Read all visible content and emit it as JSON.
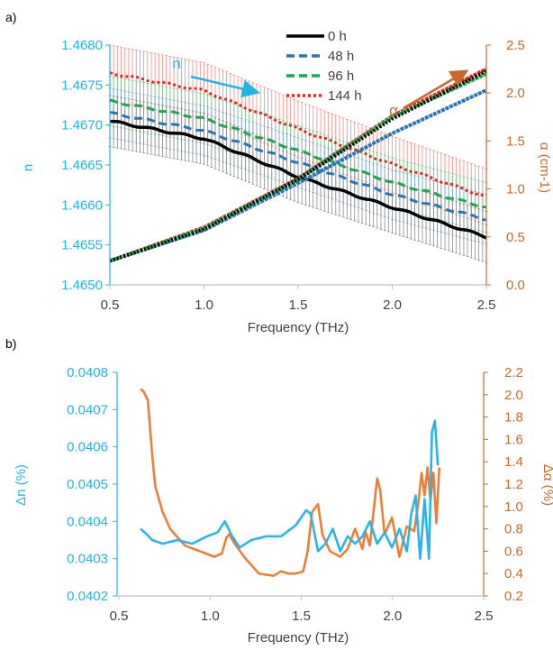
{
  "panel_labels": {
    "a": "a)",
    "b": "b)"
  },
  "colors": {
    "n_axis": "#1fb4e6",
    "alpha_axis": "#c8692a",
    "s0": "#000000",
    "s48": "#2a74b8",
    "s96": "#1aa84a",
    "s144": "#e2261c",
    "err0": "#8c8c8c",
    "err48": "#7aaad6",
    "err96": "#73c58c",
    "err144": "#f08a84",
    "dn": "#29b5e8",
    "dalpha": "#ec7f36"
  },
  "chart_data": [
    {
      "type": "line",
      "panel": "a)",
      "xlabel": "Frequency (THz)",
      "ylabel_left": "n",
      "ylabel_right": "α (cm-1)",
      "xlim": [
        0.5,
        2.5
      ],
      "ylim_left": [
        1.465,
        1.468
      ],
      "ylim_right": [
        0.0,
        2.5
      ],
      "x_ticks": [
        "0.5",
        "1.0",
        "1.5",
        "2.0",
        "2.5"
      ],
      "y_ticks_left": [
        "1.4650",
        "1.4655",
        "1.4660",
        "1.4665",
        "1.4670",
        "1.4675",
        "1.4680"
      ],
      "y_ticks_right": [
        "0.0",
        "0.5",
        "1.0",
        "1.5",
        "2.0",
        "2.5"
      ],
      "legend": [
        "0 h",
        "48 h",
        "96 h",
        "144 h"
      ],
      "annotations": {
        "n_arrow_label": "n",
        "alpha_arrow_label": "α"
      },
      "x": [
        0.5,
        1.0,
        1.5,
        2.0,
        2.5
      ],
      "n_series": [
        {
          "name": "0 h",
          "values": [
            1.46705,
            1.46683,
            1.46635,
            1.46597,
            1.4656
          ],
          "err": 0.00032
        },
        {
          "name": "48 h",
          "values": [
            1.46715,
            1.46693,
            1.46653,
            1.46613,
            1.46582
          ],
          "err": 0.00031
        },
        {
          "name": "96 h",
          "values": [
            1.4673,
            1.46708,
            1.46668,
            1.46628,
            1.46597
          ],
          "err": 0.00031
        },
        {
          "name": "144 h",
          "values": [
            1.46765,
            1.46743,
            1.46695,
            1.46651,
            1.4661
          ],
          "err": 0.00035
        }
      ],
      "alpha_series": [
        {
          "name": "0 h",
          "values": [
            0.25,
            0.58,
            1.1,
            1.73,
            2.23
          ]
        },
        {
          "name": "48 h",
          "values": [
            0.25,
            0.57,
            1.06,
            1.58,
            2.03
          ]
        },
        {
          "name": "96 h",
          "values": [
            0.25,
            0.59,
            1.1,
            1.75,
            2.2
          ]
        },
        {
          "name": "144 h",
          "values": [
            0.25,
            0.6,
            1.11,
            1.76,
            2.25
          ]
        }
      ]
    },
    {
      "type": "line",
      "panel": "b)",
      "xlabel": "Frequency (THz)",
      "ylabel_left": "Δn (%)",
      "ylabel_right": "Δα (%)",
      "xlim": [
        0.5,
        2.5
      ],
      "ylim_left": [
        0.0402,
        0.0408
      ],
      "ylim_right": [
        0.2,
        2.2
      ],
      "x_ticks": [
        "0.5",
        "1.0",
        "1.5",
        "2.0",
        "2.5"
      ],
      "y_ticks_left": [
        "0.0402",
        "0.0403",
        "0.0404",
        "0.0405",
        "0.0406",
        "0.0407",
        "0.0408"
      ],
      "y_ticks_right": [
        "0.2",
        "0.4",
        "0.6",
        "0.8",
        "1.0",
        "1.2",
        "1.4",
        "1.6",
        "1.8",
        "2.0",
        "2.2"
      ],
      "series": [
        {
          "name": "Δn",
          "x": [
            0.5,
            0.53,
            0.58,
            0.65,
            0.75,
            0.85,
            0.95,
            1.02,
            1.07,
            1.12,
            1.17,
            1.25,
            1.35,
            1.45,
            1.55,
            1.62,
            1.65,
            1.7,
            1.75,
            1.8,
            1.85,
            1.9,
            1.95,
            2.0,
            2.05,
            2.1,
            2.15,
            2.2,
            2.25,
            2.3,
            2.33,
            2.36,
            2.39,
            2.42,
            2.45,
            2.47,
            2.49,
            2.51
          ],
          "values": [
            0.04038,
            0.04037,
            0.04035,
            0.04034,
            0.04035,
            0.04034,
            0.04036,
            0.04037,
            0.0404,
            0.04036,
            0.04033,
            0.04035,
            0.04036,
            0.04036,
            0.04039,
            0.04043,
            0.04042,
            0.04032,
            0.04034,
            0.04038,
            0.04032,
            0.04036,
            0.04034,
            0.04036,
            0.0404,
            0.04034,
            0.04037,
            0.04033,
            0.04038,
            0.04032,
            0.04042,
            0.04047,
            0.0403,
            0.04046,
            0.0403,
            0.04064,
            0.04067,
            0.04055
          ]
        },
        {
          "name": "Δα",
          "x": [
            0.5,
            0.52,
            0.55,
            0.58,
            0.6,
            0.65,
            0.7,
            0.8,
            0.9,
            1.0,
            1.05,
            1.08,
            1.1,
            1.13,
            1.2,
            1.3,
            1.4,
            1.45,
            1.5,
            1.55,
            1.6,
            1.63,
            1.66,
            1.7,
            1.73,
            1.78,
            1.85,
            1.9,
            1.95,
            2.0,
            2.02,
            2.05,
            2.1,
            2.12,
            2.15,
            2.2,
            2.25,
            2.3,
            2.35,
            2.38,
            2.4,
            2.42,
            2.44,
            2.46,
            2.48,
            2.5,
            2.52
          ],
          "values": [
            2.05,
            2.03,
            1.95,
            1.45,
            1.18,
            0.95,
            0.8,
            0.65,
            0.6,
            0.55,
            0.58,
            0.72,
            0.75,
            0.68,
            0.55,
            0.4,
            0.38,
            0.42,
            0.4,
            0.4,
            0.42,
            0.6,
            0.95,
            1.02,
            0.75,
            0.6,
            0.55,
            0.62,
            0.8,
            0.62,
            0.78,
            0.65,
            1.25,
            1.15,
            0.75,
            0.9,
            0.55,
            0.82,
            0.78,
            1.05,
            1.3,
            1.1,
            1.35,
            1.05,
            1.3,
            0.85,
            1.35
          ]
        }
      ]
    }
  ]
}
